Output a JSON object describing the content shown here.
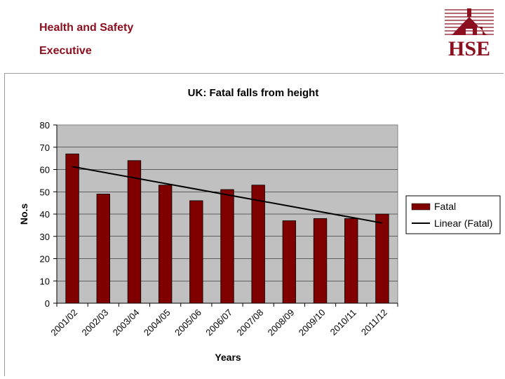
{
  "header": {
    "org_line1": "Health and Safety",
    "org_line2": "Executive",
    "logo_text": "HSE",
    "brand_color": "#8b0f1e"
  },
  "chart_data": {
    "type": "bar",
    "title": "UK: Fatal falls from height",
    "xlabel": "Years",
    "ylabel": "No.s",
    "categories": [
      "2001/02",
      "2002/03",
      "2003/04",
      "2004/05",
      "2005/06",
      "2006/07",
      "2007/08",
      "2008/09",
      "2009/10",
      "2010/11",
      "2011/12"
    ],
    "series": [
      {
        "name": "Fatal",
        "values": [
          67,
          49,
          64,
          53,
          46,
          51,
          53,
          37,
          38,
          38,
          40
        ],
        "color": "#800000"
      }
    ],
    "trendline": {
      "name": "Linear (Fatal)",
      "start": 61.3,
      "end": 36.0,
      "color": "#000000"
    },
    "ylim": [
      0,
      80
    ],
    "yticks": [
      0,
      10,
      20,
      30,
      40,
      50,
      60,
      70,
      80
    ],
    "grid": true,
    "legend": "right",
    "plot_background": "#c0c0c0"
  }
}
